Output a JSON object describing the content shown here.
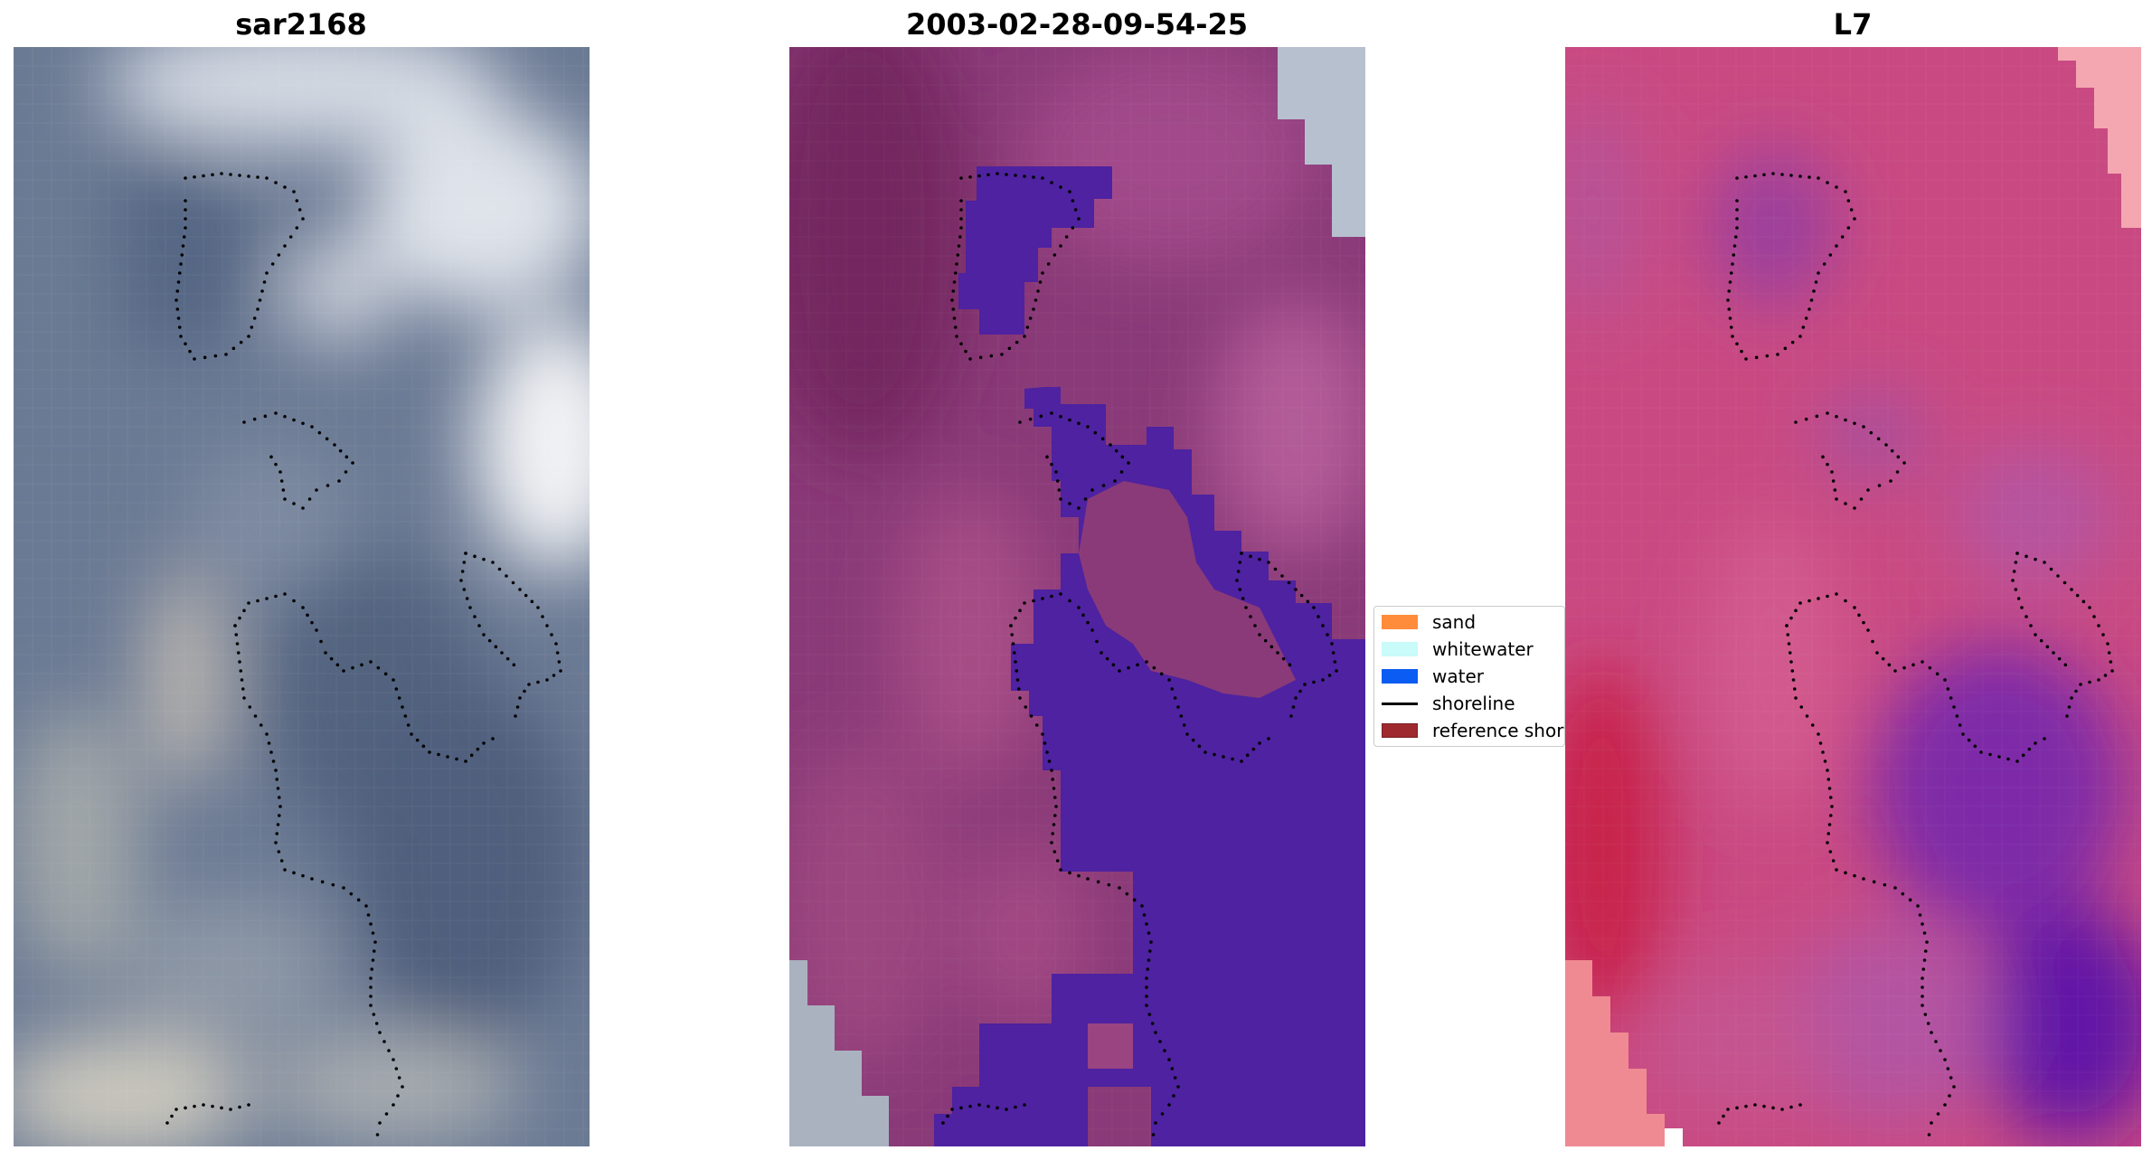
{
  "panels": [
    {
      "title": "sar2168",
      "image": "rgb-satellite-image"
    },
    {
      "title": "2003-02-28-09-54-25",
      "image": "classified-image"
    },
    {
      "title": "L7",
      "image": "mndwi-image"
    }
  ],
  "legend": {
    "items": [
      {
        "label": "sand",
        "color": "#ff8c3a",
        "kind": "patch"
      },
      {
        "label": "whitewater",
        "color": "#c8fbf9",
        "kind": "patch"
      },
      {
        "label": "water",
        "color": "#0a5cf2",
        "kind": "patch"
      },
      {
        "label": "shoreline",
        "color": "#000000",
        "kind": "line"
      },
      {
        "label": "reference shoreline",
        "color": "#9e2a2f",
        "kind": "patch"
      }
    ]
  },
  "colors": {
    "classified_water_overlay": "#4e22a0",
    "reference_shoreline_dots": "#000000"
  }
}
